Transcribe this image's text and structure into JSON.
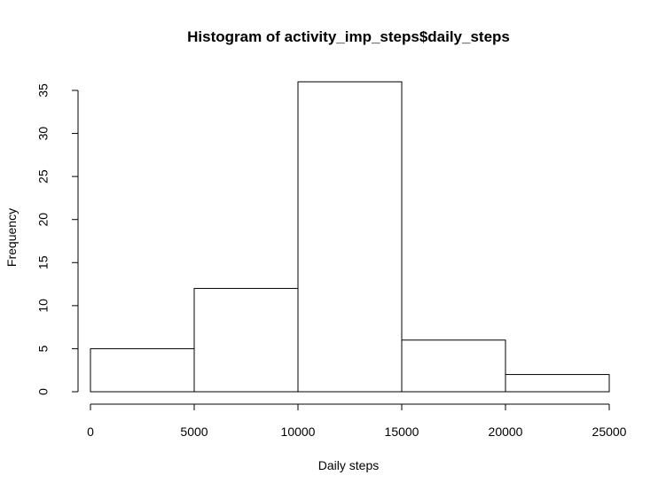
{
  "chart_data": {
    "type": "bar",
    "title": "Histogram of activity_imp_steps$daily_steps",
    "xlabel": "Daily steps",
    "ylabel": "Frequency",
    "bins": [
      {
        "start": 0,
        "end": 5000,
        "count": 5
      },
      {
        "start": 5000,
        "end": 10000,
        "count": 12
      },
      {
        "start": 10000,
        "end": 15000,
        "count": 36
      },
      {
        "start": 15000,
        "end": 20000,
        "count": 6
      },
      {
        "start": 20000,
        "end": 25000,
        "count": 2
      }
    ],
    "xlim": [
      0,
      25000
    ],
    "ylim": [
      0,
      35
    ],
    "x_ticks": [
      "0",
      "5000",
      "10000",
      "15000",
      "20000",
      "25000"
    ],
    "y_ticks": [
      "0",
      "5",
      "10",
      "15",
      "20",
      "25",
      "30",
      "35"
    ],
    "grid": false
  }
}
